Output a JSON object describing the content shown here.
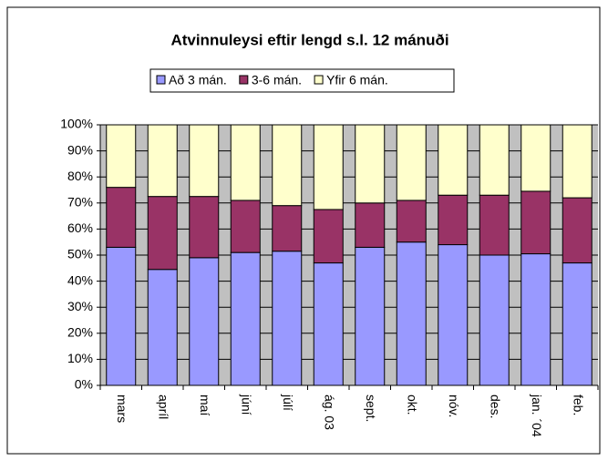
{
  "chart_data": {
    "type": "stacked_bar_100",
    "title": "Atvinnuleysi eftir lengd s.l. 12 mánuði",
    "categories": [
      "mars",
      "apríl",
      "maí",
      "júní",
      "júlí",
      "ág. 03",
      "sept.",
      "okt.",
      "nóv.",
      "des.",
      "jan. ´04",
      "feb."
    ],
    "series": [
      {
        "name": "Að 3 mán.",
        "color": "#9999ff",
        "values": [
          53,
          44.5,
          49,
          51,
          51.5,
          47,
          53,
          55,
          54,
          50,
          50.5,
          47
        ]
      },
      {
        "name": "3-6 mán.",
        "color": "#993366",
        "values": [
          23,
          28,
          23.5,
          20,
          17.5,
          20.5,
          17,
          16,
          19,
          23,
          24,
          25
        ]
      },
      {
        "name": "Yfir 6 mán.",
        "color": "#ffffcc",
        "values": [
          24,
          27.5,
          27.5,
          29,
          31,
          32.5,
          30,
          29,
          27,
          27,
          25.5,
          28
        ]
      }
    ],
    "ylim": [
      0,
      100
    ],
    "yticks": [
      {
        "value": 0,
        "label": "0%"
      },
      {
        "value": 10,
        "label": "10%"
      },
      {
        "value": 20,
        "label": "20%"
      },
      {
        "value": 30,
        "label": "30%"
      },
      {
        "value": 40,
        "label": "40%"
      },
      {
        "value": 50,
        "label": "50%"
      },
      {
        "value": 60,
        "label": "60%"
      },
      {
        "value": 70,
        "label": "70%"
      },
      {
        "value": 80,
        "label": "80%"
      },
      {
        "value": 90,
        "label": "90%"
      },
      {
        "value": 100,
        "label": "100%"
      }
    ],
    "grid": true,
    "legend": "top"
  }
}
